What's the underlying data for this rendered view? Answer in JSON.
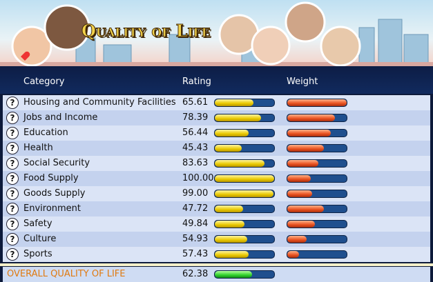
{
  "header": {
    "title": "Quality of Life"
  },
  "table": {
    "columns": [
      "Category",
      "Rating",
      "Weight"
    ],
    "rating_lim": [
      0,
      100
    ],
    "weight_lim": [
      0,
      100
    ],
    "rows": [
      {
        "category": "Housing and Community Facilities",
        "rating": 65.61,
        "weight": 100
      },
      {
        "category": "Jobs and Income",
        "rating": 78.39,
        "weight": 80
      },
      {
        "category": "Education",
        "rating": 56.44,
        "weight": 73
      },
      {
        "category": "Health",
        "rating": 45.43,
        "weight": 62
      },
      {
        "category": "Social Security",
        "rating": 83.63,
        "weight": 52
      },
      {
        "category": "Food Supply",
        "rating": 100,
        "rating_label": "100.00",
        "weight": 40
      },
      {
        "category": "Goods Supply",
        "rating": 99,
        "rating_label": "99.00",
        "weight": 42
      },
      {
        "category": "Environment",
        "rating": 47.72,
        "weight": 62
      },
      {
        "category": "Safety",
        "rating": 49.84,
        "weight": 47
      },
      {
        "category": "Culture",
        "rating": 54.93,
        "weight": 32
      },
      {
        "category": "Sports",
        "rating": 57.43,
        "weight": 20
      }
    ],
    "overall": {
      "label": "OVERALL QUALITY OF LIFE",
      "rating": 62.38
    }
  }
}
